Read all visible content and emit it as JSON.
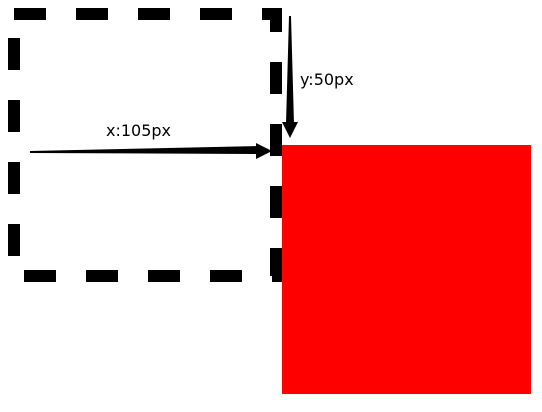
{
  "diagram": {
    "original_box": {
      "name": "original-position-box",
      "style": "dashed",
      "color": "#000000"
    },
    "moved_box": {
      "name": "translated-box",
      "fill": "#ff0000"
    },
    "x_offset": {
      "label": "x:105px",
      "color": "#000000"
    },
    "y_offset": {
      "label": "y:50px",
      "color": "#000000"
    }
  }
}
